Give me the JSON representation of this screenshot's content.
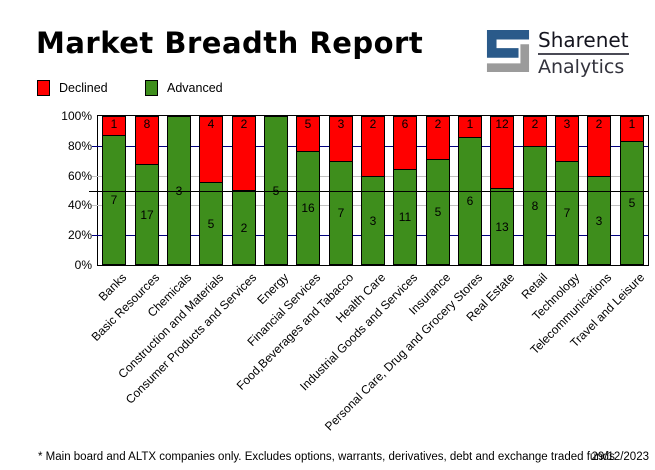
{
  "header": {
    "title": "Market Breadth Report",
    "logo": {
      "brand": "Sharenet",
      "sub": "Analytics",
      "blue": "#2A5A8A",
      "gray": "#9B9B9B"
    }
  },
  "legend": [
    {
      "label": "Declined",
      "color": "#FF0000"
    },
    {
      "label": "Advanced",
      "color": "#3E8E1C"
    }
  ],
  "chart_data": {
    "type": "bar",
    "stacked": true,
    "stack_mode": "percent",
    "title": "Market Breadth Report",
    "xlabel": "",
    "ylabel": "",
    "ylim": [
      0,
      100
    ],
    "yticks": [
      "100%",
      "80%",
      "60%",
      "40%",
      "20%",
      "0%"
    ],
    "legend_position": "top-left",
    "categories": [
      "Banks",
      "Basic Resources",
      "Chemicals",
      "Construction and Materials",
      "Consumer Products and Services",
      "Energy",
      "Financial Services",
      "Food,Beverages and Tabacco",
      "Health Care",
      "Industrial Goods and Services",
      "Insurance",
      "Personal Care, Drug and Grocery Stores",
      "Real Estate",
      "Retail",
      "Technology",
      "Telecommunications",
      "Travel and Leisure"
    ],
    "series": [
      {
        "name": "Advanced",
        "color": "#3E8E1C",
        "values": [
          7,
          17,
          3,
          5,
          2,
          5,
          16,
          7,
          3,
          11,
          5,
          6,
          13,
          8,
          7,
          3,
          5
        ]
      },
      {
        "name": "Declined",
        "color": "#FF0000",
        "values": [
          1,
          8,
          0,
          4,
          2,
          0,
          5,
          3,
          2,
          6,
          2,
          1,
          12,
          2,
          3,
          2,
          1
        ]
      }
    ],
    "gridlines": [
      {
        "value": 80,
        "color": "#000080"
      },
      {
        "value": 60,
        "color": "#C0C0C0"
      },
      {
        "value": 50,
        "color": "#000000",
        "on_top": true
      },
      {
        "value": 40,
        "color": "#C0C0C0"
      },
      {
        "value": 20,
        "color": "#000080"
      }
    ]
  },
  "footer": {
    "note": "* Main board and ALTX companies only. Excludes options, warrants, derivatives, debt and exchange traded funds",
    "date": "29/12/2023"
  }
}
